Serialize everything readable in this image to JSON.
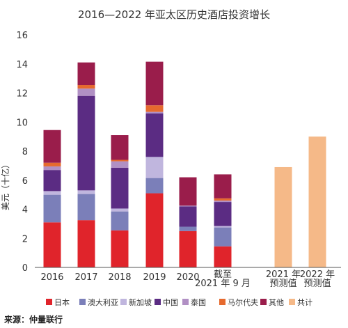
{
  "chart_data": {
    "type": "bar",
    "stacked": true,
    "title": "2016—2022 年亚太区历史酒店投资增长",
    "ylabel": "美元（十亿）",
    "xlabel": "",
    "ylim": [
      0,
      16
    ],
    "yticks": [
      0,
      2,
      4,
      6,
      8,
      10,
      12,
      14,
      16
    ],
    "grid": false,
    "legend_position": "bottom",
    "categories": [
      [
        "2016"
      ],
      [
        "2017"
      ],
      [
        "2018"
      ],
      [
        "2019"
      ],
      [
        "2020"
      ],
      [
        "截至",
        "2021 年 9 月"
      ],
      [],
      [
        "2021 年",
        "预测值"
      ],
      [
        "2022 年",
        "预测值"
      ]
    ],
    "series": [
      {
        "name": "日本",
        "color": "#e0242b",
        "values": [
          3.1,
          3.25,
          2.55,
          5.1,
          2.5,
          1.45,
          null,
          null,
          null
        ]
      },
      {
        "name": "澳大利亚",
        "color": "#7b7fb9",
        "values": [
          1.9,
          1.8,
          1.3,
          1.05,
          0.3,
          1.3,
          null,
          null,
          null
        ]
      },
      {
        "name": "新加坡",
        "color": "#c0b6de",
        "values": [
          0.25,
          0.25,
          0.2,
          1.45,
          0.0,
          0.1,
          null,
          null,
          null
        ]
      },
      {
        "name": "中国",
        "color": "#5b2c83",
        "values": [
          1.45,
          6.5,
          2.8,
          3.0,
          1.4,
          1.65,
          null,
          null,
          null
        ]
      },
      {
        "name": "泰国",
        "color": "#b190c4",
        "values": [
          0.25,
          0.5,
          0.45,
          0.1,
          0.05,
          0.1,
          null,
          null,
          null
        ]
      },
      {
        "name": "马尔代夫",
        "color": "#e66a2e",
        "values": [
          0.25,
          0.25,
          0.1,
          0.45,
          0.0,
          0.15,
          null,
          null,
          null
        ]
      },
      {
        "name": "其他",
        "color": "#9a1d4b",
        "values": [
          2.25,
          1.55,
          1.7,
          3.0,
          1.95,
          1.65,
          null,
          null,
          null
        ]
      },
      {
        "name": "共计",
        "color": "#f5b988",
        "values": [
          null,
          null,
          null,
          null,
          null,
          null,
          null,
          6.9,
          9.0
        ]
      }
    ],
    "source": "来源：仲量联行"
  }
}
